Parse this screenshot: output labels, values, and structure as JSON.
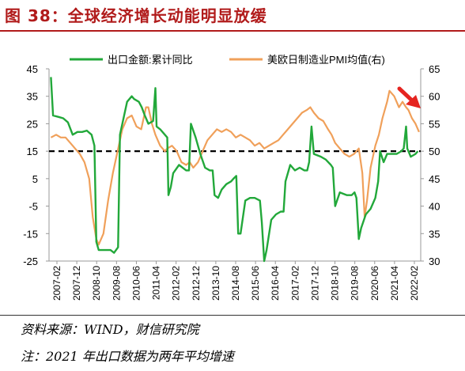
{
  "figure": {
    "title": "图 38：全球经济增长动能明显放缓",
    "source": "资料来源：WIND，财信研究院",
    "note": "注：2021 年出口数据为两年平均增速"
  },
  "colors": {
    "title_red": "#b11b1b",
    "export_green": "#22a83a",
    "pmi_orange": "#f0a05a",
    "ref_line": "#000000",
    "arrow_red": "#e52420"
  },
  "chart_data": {
    "type": "line",
    "x_ticks": [
      "2007-02",
      "2007-12",
      "2008-10",
      "2009-08",
      "2010-06",
      "2011-04",
      "2012-02",
      "2012-12",
      "2013-10",
      "2014-08",
      "2015-06",
      "2016-04",
      "2017-02",
      "2017-12",
      "2018-10",
      "2019-08",
      "2020-06",
      "2021-04",
      "2022-02"
    ],
    "y_left": {
      "ticks": [
        "45",
        "35",
        "25",
        "15",
        "5",
        "-5",
        "-15",
        "-25"
      ],
      "range": [
        -25,
        45
      ]
    },
    "y_right": {
      "ticks": [
        "65",
        "60",
        "55",
        "50",
        "45",
        "40",
        "35",
        "30"
      ],
      "range": [
        30,
        65
      ]
    },
    "reference_line": {
      "axis": "left",
      "value": 15,
      "style": "dashed"
    },
    "legend": {
      "placement": "top"
    },
    "series": [
      {
        "name": "出口金额:累计同比",
        "axis": "left",
        "values": [
          [
            2007.08,
            42
          ],
          [
            2007.17,
            28
          ],
          [
            2007.4,
            27.5
          ],
          [
            2007.6,
            27
          ],
          [
            2007.8,
            25.5
          ],
          [
            2008.0,
            21
          ],
          [
            2008.2,
            22
          ],
          [
            2008.4,
            22
          ],
          [
            2008.6,
            22.5
          ],
          [
            2008.8,
            21
          ],
          [
            2008.92,
            17
          ],
          [
            2009.0,
            -18
          ],
          [
            2009.1,
            -21
          ],
          [
            2009.3,
            -21
          ],
          [
            2009.6,
            -21
          ],
          [
            2009.75,
            -22
          ],
          [
            2009.92,
            -20
          ],
          [
            2010.0,
            21
          ],
          [
            2010.3,
            33
          ],
          [
            2010.5,
            35
          ],
          [
            2010.6,
            34
          ],
          [
            2010.8,
            33
          ],
          [
            2010.92,
            31
          ],
          [
            2011.05,
            28
          ],
          [
            2011.2,
            25
          ],
          [
            2011.4,
            26
          ],
          [
            2011.5,
            38
          ],
          [
            2011.55,
            24
          ],
          [
            2011.7,
            23
          ],
          [
            2011.9,
            21
          ],
          [
            2012.0,
            20
          ],
          [
            2012.05,
            -1
          ],
          [
            2012.15,
            2
          ],
          [
            2012.25,
            7
          ],
          [
            2012.5,
            10
          ],
          [
            2012.8,
            8
          ],
          [
            2012.92,
            8
          ],
          [
            2013.0,
            25
          ],
          [
            2013.2,
            20
          ],
          [
            2013.4,
            14
          ],
          [
            2013.6,
            9
          ],
          [
            2013.8,
            8
          ],
          [
            2013.92,
            8
          ],
          [
            2014.0,
            -1
          ],
          [
            2014.15,
            -2
          ],
          [
            2014.3,
            1
          ],
          [
            2014.5,
            3
          ],
          [
            2014.7,
            4
          ],
          [
            2014.8,
            5
          ],
          [
            2014.92,
            6
          ],
          [
            2015.0,
            -15
          ],
          [
            2015.1,
            -15
          ],
          [
            2015.3,
            -3
          ],
          [
            2015.5,
            -2
          ],
          [
            2015.7,
            -2
          ],
          [
            2015.92,
            -3
          ],
          [
            2016.0,
            -11
          ],
          [
            2016.1,
            -25
          ],
          [
            2016.2,
            -21
          ],
          [
            2016.4,
            -10
          ],
          [
            2016.6,
            -8
          ],
          [
            2016.8,
            -7
          ],
          [
            2016.92,
            -7
          ],
          [
            2017.0,
            4
          ],
          [
            2017.2,
            10
          ],
          [
            2017.4,
            8
          ],
          [
            2017.6,
            9
          ],
          [
            2017.8,
            8
          ],
          [
            2017.92,
            8
          ],
          [
            2018.0,
            11
          ],
          [
            2018.1,
            24
          ],
          [
            2018.2,
            14
          ],
          [
            2018.5,
            13
          ],
          [
            2018.7,
            12
          ],
          [
            2018.92,
            10
          ],
          [
            2019.0,
            9
          ],
          [
            2019.1,
            -5
          ],
          [
            2019.3,
            0
          ],
          [
            2019.6,
            -1
          ],
          [
            2019.8,
            -1
          ],
          [
            2019.92,
            0
          ],
          [
            2020.0,
            -2
          ],
          [
            2020.1,
            -17
          ],
          [
            2020.2,
            -13
          ],
          [
            2020.4,
            -8
          ],
          [
            2020.6,
            -6
          ],
          [
            2020.8,
            -2
          ],
          [
            2020.92,
            4
          ],
          [
            2021.0,
            15
          ],
          [
            2021.15,
            11
          ],
          [
            2021.3,
            14
          ],
          [
            2021.5,
            14
          ],
          [
            2021.7,
            14
          ],
          [
            2021.9,
            15
          ],
          [
            2022.0,
            16
          ],
          [
            2022.1,
            24
          ],
          [
            2022.15,
            16
          ],
          [
            2022.3,
            13
          ],
          [
            2022.5,
            14
          ],
          [
            2022.6,
            15
          ]
        ]
      },
      {
        "name": "美欧日制造业PMI均值(右)",
        "axis": "right",
        "values": [
          [
            2007.08,
            52.5
          ],
          [
            2007.3,
            53
          ],
          [
            2007.5,
            52.5
          ],
          [
            2007.7,
            52.5
          ],
          [
            2007.9,
            51.5
          ],
          [
            2008.1,
            50.5
          ],
          [
            2008.3,
            49.5
          ],
          [
            2008.5,
            48
          ],
          [
            2008.7,
            45
          ],
          [
            2008.85,
            38
          ],
          [
            2009.0,
            34
          ],
          [
            2009.1,
            33
          ],
          [
            2009.3,
            35
          ],
          [
            2009.5,
            41
          ],
          [
            2009.7,
            46
          ],
          [
            2009.9,
            50
          ],
          [
            2010.1,
            54
          ],
          [
            2010.3,
            56
          ],
          [
            2010.5,
            56.5
          ],
          [
            2010.7,
            54.5
          ],
          [
            2010.9,
            54
          ],
          [
            2011.1,
            58
          ],
          [
            2011.2,
            58
          ],
          [
            2011.35,
            55
          ],
          [
            2011.5,
            53
          ],
          [
            2011.7,
            51
          ],
          [
            2011.9,
            50
          ],
          [
            2012.0,
            50.5
          ],
          [
            2012.2,
            51
          ],
          [
            2012.4,
            50
          ],
          [
            2012.6,
            48
          ],
          [
            2012.8,
            47.5
          ],
          [
            2012.95,
            48
          ],
          [
            2013.1,
            47
          ],
          [
            2013.3,
            48
          ],
          [
            2013.5,
            50
          ],
          [
            2013.7,
            52
          ],
          [
            2013.9,
            53
          ],
          [
            2014.1,
            54
          ],
          [
            2014.3,
            53.5
          ],
          [
            2014.5,
            54
          ],
          [
            2014.7,
            53.5
          ],
          [
            2014.9,
            52.5
          ],
          [
            2015.1,
            53
          ],
          [
            2015.3,
            52.5
          ],
          [
            2015.5,
            52
          ],
          [
            2015.7,
            51
          ],
          [
            2015.9,
            51.5
          ],
          [
            2016.1,
            50.5
          ],
          [
            2016.3,
            51
          ],
          [
            2016.5,
            51.5
          ],
          [
            2016.7,
            52
          ],
          [
            2016.9,
            53
          ],
          [
            2017.1,
            54
          ],
          [
            2017.3,
            55
          ],
          [
            2017.5,
            56
          ],
          [
            2017.7,
            57
          ],
          [
            2017.9,
            57.5
          ],
          [
            2018.05,
            58
          ],
          [
            2018.2,
            57
          ],
          [
            2018.4,
            56
          ],
          [
            2018.6,
            55.5
          ],
          [
            2018.8,
            54
          ],
          [
            2018.95,
            53
          ],
          [
            2019.1,
            51.5
          ],
          [
            2019.3,
            50.5
          ],
          [
            2019.5,
            49.5
          ],
          [
            2019.7,
            49
          ],
          [
            2019.9,
            49.5
          ],
          [
            2020.1,
            50.5
          ],
          [
            2020.25,
            46
          ],
          [
            2020.35,
            38
          ],
          [
            2020.45,
            41
          ],
          [
            2020.6,
            47
          ],
          [
            2020.8,
            51
          ],
          [
            2020.95,
            53
          ],
          [
            2021.1,
            56
          ],
          [
            2021.3,
            59
          ],
          [
            2021.4,
            61
          ],
          [
            2021.6,
            60
          ],
          [
            2021.8,
            58
          ],
          [
            2021.95,
            59
          ],
          [
            2022.1,
            58
          ],
          [
            2022.2,
            57.5
          ],
          [
            2022.35,
            56
          ],
          [
            2022.5,
            55
          ],
          [
            2022.65,
            53.5
          ]
        ]
      }
    ]
  }
}
